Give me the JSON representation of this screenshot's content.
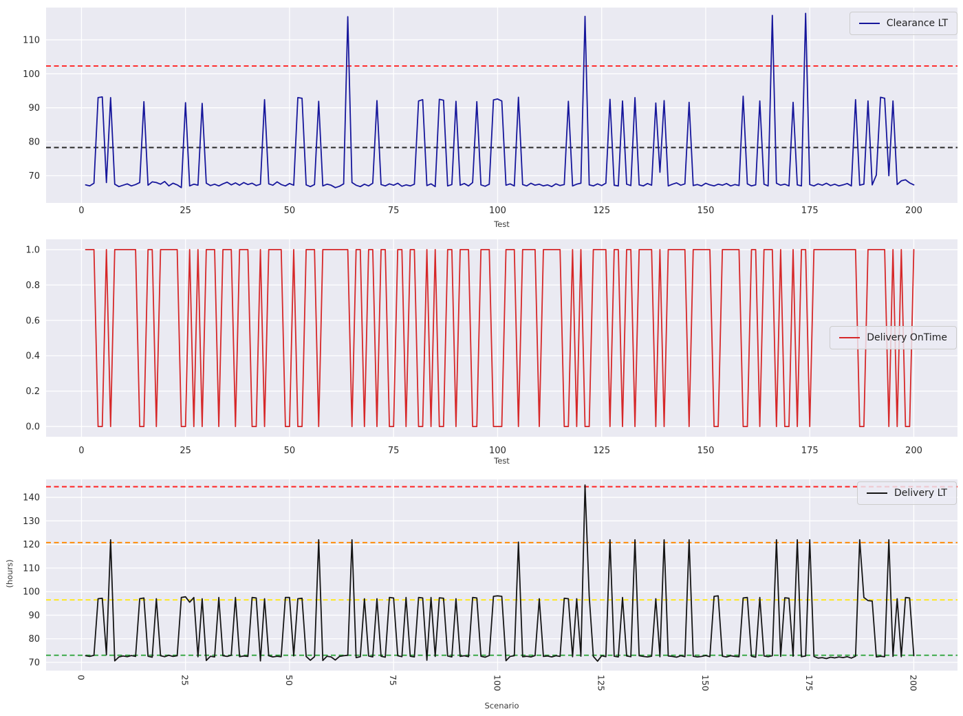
{
  "figure": {
    "background": "#ffffff",
    "axes_background": "#eaeaf2",
    "grid_color": "#ffffff",
    "tick_color": "#2a2a2a"
  },
  "chart_data": [
    {
      "id": "clearance-lt",
      "type": "line",
      "legend": "Clearance LT",
      "xlabel": "Test",
      "ylabel": "",
      "line_color": "#16169b",
      "xlim": [
        -8.5,
        210.5
      ],
      "ylim": [
        62,
        119.5
      ],
      "x_ticks": [
        0,
        25,
        50,
        75,
        100,
        125,
        150,
        175,
        200
      ],
      "x_tick_labels": [
        "0",
        "25",
        "50",
        "75",
        "100",
        "125",
        "150",
        "175",
        "200"
      ],
      "y_ticks": [
        70,
        80,
        90,
        100,
        110
      ],
      "y_tick_labels": [
        "70",
        "80",
        "90",
        "100",
        "110"
      ],
      "x_start": 1,
      "x_step": 1,
      "ref_lines": [
        {
          "name": "clearance-upper-threshold",
          "y": 102.3,
          "color": "#ff2121"
        },
        {
          "name": "clearance-mean-line",
          "y": 78.3,
          "color": "#262626"
        }
      ],
      "values": [
        67.3,
        67.0,
        67.8,
        93.0,
        93.2,
        68.0,
        93.0,
        67.5,
        66.8,
        67.2,
        67.6,
        67.0,
        67.4,
        68.0,
        91.8,
        67.2,
        68.2,
        68.0,
        67.5,
        68.3,
        67.0,
        67.8,
        67.3,
        66.5,
        91.5,
        67.0,
        67.5,
        67.2,
        91.3,
        67.8,
        67.1,
        67.5,
        67.0,
        67.6,
        68.1,
        67.3,
        67.9,
        67.2,
        68.0,
        67.4,
        67.8,
        67.1,
        67.5,
        92.4,
        67.6,
        67.2,
        68.2,
        67.4,
        67.0,
        67.7,
        67.2,
        93.0,
        92.8,
        67.3,
        66.8,
        67.4,
        91.9,
        67.0,
        67.5,
        67.2,
        66.5,
        66.9,
        67.6,
        116.8,
        68.0,
        67.2,
        66.8,
        67.5,
        67.0,
        67.8,
        92.1,
        67.4,
        67.0,
        67.6,
        67.2,
        67.8,
        66.9,
        67.3,
        67.0,
        67.5,
        92.0,
        92.4,
        67.1,
        67.6,
        66.8,
        92.5,
        92.2,
        67.0,
        67.4,
        91.9,
        67.2,
        67.7,
        67.0,
        68.0,
        91.8,
        67.3,
        66.9,
        67.5,
        92.3,
        92.6,
        92.0,
        67.2,
        67.6,
        67.0,
        93.1,
        67.4,
        67.0,
        67.8,
        67.2,
        67.5,
        67.0,
        67.3,
        66.8,
        67.6,
        67.1,
        67.4,
        91.9,
        67.0,
        67.5,
        67.8,
        116.9,
        67.3,
        67.0,
        67.6,
        67.1,
        67.8,
        92.5,
        67.2,
        67.0,
        92.0,
        67.5,
        67.1,
        93.0,
        67.3,
        67.0,
        67.7,
        67.2,
        91.4,
        71.0,
        92.1,
        67.0,
        67.5,
        67.9,
        67.2,
        67.6,
        91.6,
        67.1,
        67.4,
        67.0,
        67.8,
        67.3,
        67.0,
        67.5,
        67.2,
        67.7,
        67.0,
        67.4,
        67.1,
        93.4,
        67.6,
        67.0,
        67.3,
        92.0,
        67.5,
        67.0,
        117.2,
        67.8,
        67.2,
        67.5,
        67.0,
        91.6,
        67.3,
        67.0,
        117.8,
        67.4,
        67.0,
        67.6,
        67.2,
        67.8,
        67.1,
        67.5,
        67.0,
        67.3,
        67.7,
        67.0,
        92.4,
        67.2,
        67.5,
        92.0,
        67.3,
        70.2,
        93.1,
        92.8,
        70.0,
        92.0,
        67.4,
        68.5,
        68.8,
        67.9,
        67.3
      ]
    },
    {
      "id": "delivery-ontime",
      "type": "line",
      "legend": "Delivery OnTime",
      "xlabel": "Test",
      "ylabel": "",
      "line_color": "#d62728",
      "xlim": [
        -8.5,
        210.5
      ],
      "ylim": [
        -0.058,
        1.058
      ],
      "x_ticks": [
        0,
        25,
        50,
        75,
        100,
        125,
        150,
        175,
        200
      ],
      "x_tick_labels": [
        "0",
        "25",
        "50",
        "75",
        "100",
        "125",
        "150",
        "175",
        "200"
      ],
      "y_ticks": [
        0.0,
        0.2,
        0.4,
        0.6,
        0.8,
        1.0
      ],
      "y_tick_labels": [
        "0.0",
        "0.2",
        "0.4",
        "0.6",
        "0.8",
        "1.0"
      ],
      "x_start": 1,
      "x_step": 1,
      "ref_lines": [],
      "values": [
        1,
        1,
        1,
        0,
        0,
        1,
        0,
        1,
        1,
        1,
        1,
        1,
        1,
        0,
        0,
        1,
        1,
        0,
        1,
        1,
        1,
        1,
        1,
        0,
        0,
        1,
        0,
        1,
        0,
        1,
        1,
        1,
        0,
        1,
        1,
        1,
        0,
        1,
        1,
        1,
        0,
        0,
        1,
        0,
        1,
        1,
        1,
        1,
        0,
        0,
        1,
        0,
        0,
        1,
        1,
        1,
        0,
        1,
        1,
        1,
        1,
        1,
        1,
        1,
        0,
        1,
        1,
        0,
        1,
        1,
        0,
        1,
        1,
        0,
        0,
        1,
        1,
        0,
        1,
        1,
        0,
        0,
        1,
        0,
        1,
        0,
        0,
        1,
        1,
        0,
        1,
        1,
        1,
        0,
        0,
        1,
        1,
        1,
        0,
        0,
        0,
        1,
        1,
        1,
        0,
        1,
        1,
        1,
        1,
        0,
        1,
        1,
        1,
        1,
        1,
        0,
        0,
        1,
        0,
        1,
        0,
        0,
        1,
        1,
        1,
        1,
        0,
        1,
        1,
        0,
        1,
        1,
        0,
        1,
        1,
        1,
        1,
        0,
        1,
        0,
        1,
        1,
        1,
        1,
        1,
        0,
        1,
        1,
        1,
        1,
        1,
        0,
        0,
        1,
        1,
        1,
        1,
        1,
        0,
        0,
        1,
        1,
        0,
        1,
        1,
        1,
        0,
        1,
        0,
        0,
        1,
        0,
        1,
        1,
        0,
        1,
        1,
        1,
        1,
        1,
        1,
        1,
        1,
        1,
        1,
        1,
        0,
        0,
        1,
        1,
        1,
        1,
        1,
        0,
        1,
        0,
        1,
        0,
        0,
        1
      ]
    },
    {
      "id": "delivery-lt",
      "type": "line",
      "legend": "Delivery LT",
      "xlabel": "Scenario",
      "ylabel": "(hours)",
      "line_color": "#141414",
      "xlim": [
        -8.5,
        210.5
      ],
      "ylim": [
        66.5,
        147.6
      ],
      "x_ticks": [
        0,
        25,
        50,
        75,
        100,
        125,
        150,
        175,
        200
      ],
      "x_tick_labels": [
        "0",
        "25",
        "50",
        "75",
        "100",
        "125",
        "150",
        "175",
        "200"
      ],
      "y_ticks": [
        70,
        80,
        90,
        100,
        110,
        120,
        130,
        140
      ],
      "y_tick_labels": [
        "70",
        "80",
        "90",
        "100",
        "110",
        "120",
        "130",
        "140"
      ],
      "x_start": 1,
      "x_step": 1,
      "ref_lines": [
        {
          "name": "delivery-critical-threshold",
          "y": 144.5,
          "color": "#ff2121"
        },
        {
          "name": "delivery-high-threshold",
          "y": 120.8,
          "color": "#ff8c0a"
        },
        {
          "name": "delivery-late-threshold",
          "y": 96.5,
          "color": "#ffe715"
        },
        {
          "name": "delivery-baseline",
          "y": 73.0,
          "color": "#2fa43d"
        }
      ],
      "values": [
        72.8,
        72.5,
        73.0,
        97.0,
        97.2,
        73.2,
        122.0,
        70.6,
        72.3,
        72.7,
        72.4,
        72.9,
        72.5,
        97.0,
        97.3,
        72.6,
        72.2,
        97.0,
        72.8,
        72.4,
        73.0,
        72.5,
        72.8,
        97.5,
        97.8,
        95.5,
        97.5,
        72.4,
        97.0,
        70.8,
        72.6,
        72.3,
        97.5,
        72.8,
        72.5,
        73.0,
        97.5,
        72.4,
        72.7,
        72.5,
        97.5,
        97.3,
        70.6,
        97.0,
        72.8,
        72.3,
        72.6,
        72.4,
        97.5,
        97.5,
        72.7,
        97.0,
        97.2,
        72.5,
        70.9,
        72.4,
        122.0,
        70.8,
        72.6,
        72.3,
        71.0,
        72.5,
        72.8,
        73.0,
        122.0,
        72.0,
        72.4,
        97.0,
        72.7,
        72.3,
        97.0,
        72.6,
        72.2,
        97.5,
        97.3,
        72.8,
        72.4,
        97.5,
        72.6,
        72.3,
        97.5,
        97.3,
        70.9,
        97.5,
        72.5,
        97.4,
        97.2,
        72.7,
        72.3,
        97.0,
        72.5,
        72.8,
        72.4,
        97.5,
        97.3,
        72.6,
        72.2,
        72.9,
        98.0,
        98.2,
        98.0,
        70.7,
        72.5,
        72.8,
        121.0,
        72.4,
        72.6,
        72.3,
        72.9,
        97.0,
        72.5,
        72.7,
        72.3,
        72.8,
        72.5,
        97.2,
        97.0,
        72.4,
        97.0,
        72.6,
        145.2,
        98.0,
        72.5,
        70.5,
        72.8,
        72.4,
        122.0,
        72.6,
        72.3,
        97.5,
        72.7,
        72.4,
        122.0,
        72.8,
        72.5,
        72.3,
        72.6,
        97.0,
        72.4,
        122.0,
        72.7,
        72.5,
        72.2,
        72.8,
        72.4,
        122.0,
        72.6,
        72.3,
        72.5,
        72.9,
        72.4,
        98.0,
        98.2,
        72.6,
        72.3,
        72.8,
        72.5,
        72.4,
        97.3,
        97.5,
        72.6,
        72.2,
        97.5,
        72.7,
        72.4,
        72.8,
        122.0,
        72.5,
        97.4,
        97.2,
        72.6,
        122.0,
        72.4,
        72.7,
        122.0,
        72.5,
        71.8,
        72.0,
        71.6,
        72.2,
        71.9,
        72.3,
        72.0,
        72.4,
        71.8,
        72.6,
        122.0,
        97.5,
        96.2,
        96.0,
        72.3,
        72.6,
        72.4,
        122.0,
        72.5,
        97.0,
        72.4,
        97.5,
        97.3,
        72.8
      ]
    }
  ]
}
